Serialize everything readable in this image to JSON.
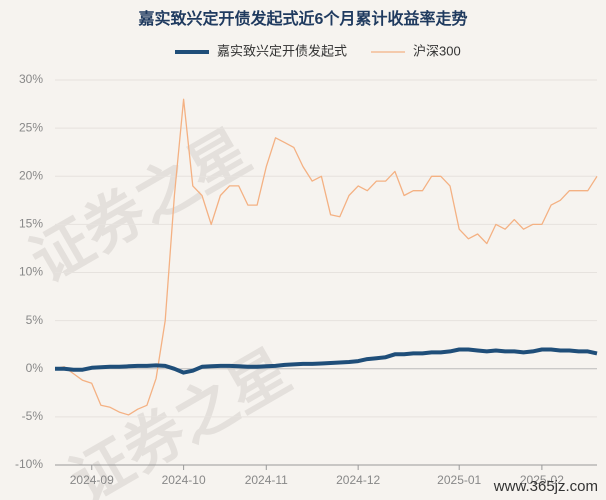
{
  "chart_data": {
    "type": "line",
    "title": "嘉实致兴定开债发起式近6个月累计收益率走势",
    "watermark": "证券之星",
    "source": "www.365jz.com",
    "categories": [
      null,
      null,
      null,
      null,
      "2024-09",
      null,
      null,
      null,
      null,
      null,
      null,
      null,
      null,
      null,
      "2024-10",
      null,
      null,
      null,
      null,
      null,
      null,
      null,
      null,
      "2024-11",
      null,
      null,
      null,
      null,
      null,
      null,
      null,
      null,
      null,
      "2024-12",
      null,
      null,
      null,
      null,
      null,
      null,
      null,
      null,
      null,
      null,
      "2025-01",
      null,
      null,
      null,
      null,
      null,
      null,
      null,
      null,
      "2025-02",
      null,
      null,
      null,
      null,
      null,
      null
    ],
    "series": [
      {
        "name": "嘉实致兴定开债发起式",
        "color": "#1f4e79",
        "width": 4,
        "values": [
          0,
          0,
          -0.1,
          -0.1,
          0.1,
          0.15,
          0.2,
          0.2,
          0.25,
          0.3,
          0.3,
          0.35,
          0.3,
          0.0,
          -0.4,
          -0.2,
          0.2,
          0.25,
          0.3,
          0.3,
          0.25,
          0.2,
          0.2,
          0.25,
          0.3,
          0.4,
          0.45,
          0.5,
          0.5,
          0.55,
          0.6,
          0.65,
          0.7,
          0.8,
          1.0,
          1.1,
          1.2,
          1.5,
          1.5,
          1.6,
          1.6,
          1.7,
          1.7,
          1.8,
          2.0,
          2.0,
          1.9,
          1.8,
          1.9,
          1.8,
          1.8,
          1.7,
          1.8,
          2.0,
          2.0,
          1.9,
          1.9,
          1.8,
          1.8,
          1.6
        ]
      },
      {
        "name": "沪深300",
        "color": "#f4b183",
        "width": 1.3,
        "values": [
          0,
          0.2,
          -0.5,
          -1.2,
          -1.5,
          -3.8,
          -4.0,
          -4.5,
          -4.8,
          -4.2,
          -3.8,
          -1.0,
          5,
          18,
          28,
          19,
          18,
          15,
          18,
          19,
          19,
          17,
          17,
          21,
          24,
          23.5,
          23,
          21,
          19.5,
          20,
          16,
          15.8,
          18,
          19,
          18.5,
          19.5,
          19.5,
          20.5,
          18,
          18.5,
          18.5,
          20,
          20,
          19,
          14.5,
          13.5,
          14,
          13,
          15,
          14.5,
          15.5,
          14.5,
          15,
          15,
          17,
          17.5,
          18.5,
          18.5,
          18.5,
          20
        ]
      }
    ],
    "ylim": [
      -10,
      30
    ],
    "yticks": [
      {
        "value": -10,
        "label": "-10%"
      },
      {
        "value": -5,
        "label": "-5%"
      },
      {
        "value": 0,
        "label": "0%"
      },
      {
        "value": 5,
        "label": "5%"
      },
      {
        "value": 10,
        "label": "10%"
      },
      {
        "value": 15,
        "label": "15%"
      },
      {
        "value": 20,
        "label": "20%"
      },
      {
        "value": 25,
        "label": "25%"
      },
      {
        "value": 30,
        "label": "30%"
      }
    ],
    "grid": true,
    "legend": "top"
  }
}
